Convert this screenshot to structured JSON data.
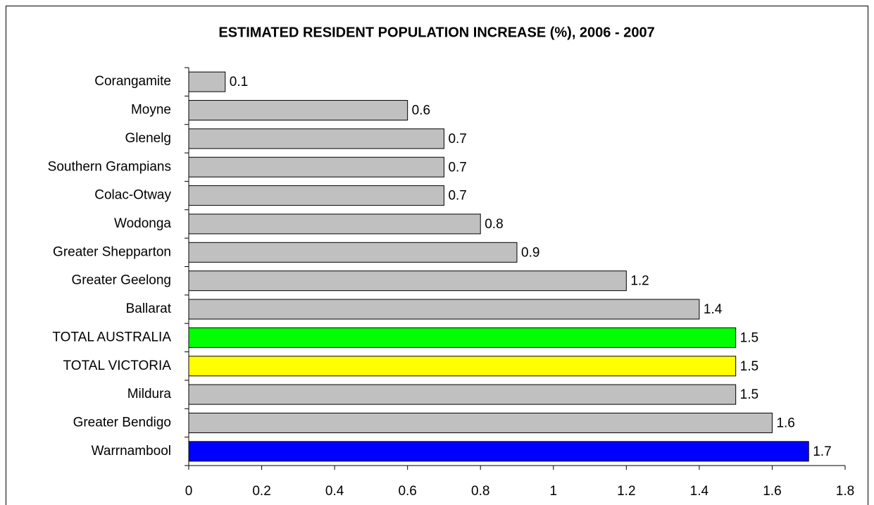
{
  "chart_data": {
    "type": "bar",
    "orientation": "horizontal",
    "title": "ESTIMATED RESIDENT POPULATION INCREASE (%), 2006 - 2007",
    "categories": [
      "Corangamite",
      "Moyne",
      "Glenelg",
      "Southern Grampians",
      "Colac-Otway",
      "Wodonga",
      "Greater Shepparton",
      "Greater Geelong",
      "Ballarat",
      "TOTAL AUSTRALIA",
      "TOTAL VICTORIA",
      "Mildura",
      "Greater Bendigo",
      "Warrnambool"
    ],
    "values": [
      0.1,
      0.6,
      0.7,
      0.7,
      0.7,
      0.8,
      0.9,
      1.2,
      1.4,
      1.5,
      1.5,
      1.5,
      1.6,
      1.7
    ],
    "colors": [
      "#c0c0c0",
      "#c0c0c0",
      "#c0c0c0",
      "#c0c0c0",
      "#c0c0c0",
      "#c0c0c0",
      "#c0c0c0",
      "#c0c0c0",
      "#c0c0c0",
      "#00ff00",
      "#ffff00",
      "#c0c0c0",
      "#c0c0c0",
      "#0000ff"
    ],
    "xlim": [
      0,
      1.8
    ],
    "xticks": [
      0,
      0.2,
      0.4,
      0.6,
      0.8,
      1,
      1.2,
      1.4,
      1.6,
      1.8
    ],
    "grid": false
  }
}
